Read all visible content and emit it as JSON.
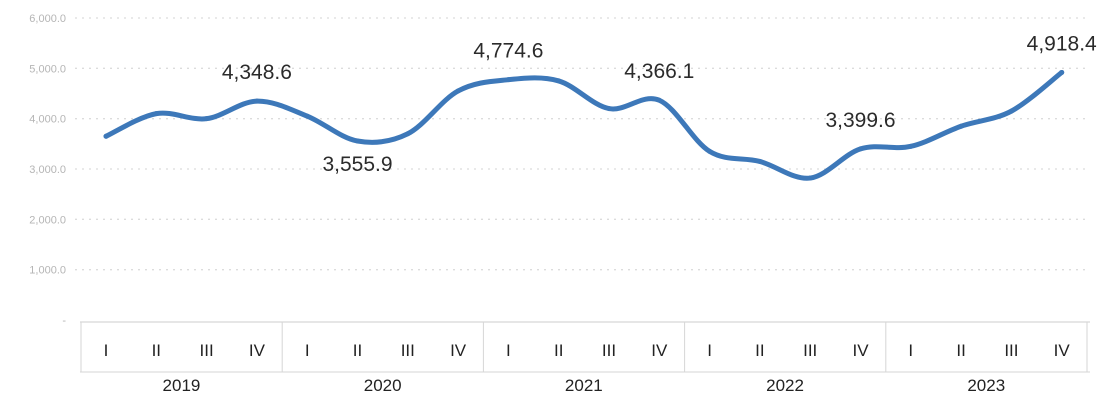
{
  "chart_data": {
    "type": "line",
    "title": "",
    "xlabel": "",
    "ylabel": "",
    "ylim": [
      0,
      6000
    ],
    "y_ticks": [
      "-",
      "1,000.0",
      "2,000.0",
      "3,000.0",
      "4,000.0",
      "5,000.0",
      "6,000.0"
    ],
    "grid": true,
    "legend": "none",
    "colors": {
      "line": "#3d78b9",
      "grid": "#dcdcdc",
      "axis": "#d6d6d6"
    },
    "years": [
      "2019",
      "2020",
      "2021",
      "2022",
      "2023"
    ],
    "categories": [
      "I",
      "II",
      "III",
      "IV",
      "I",
      "II",
      "III",
      "IV",
      "I",
      "II",
      "III",
      "IV",
      "I",
      "II",
      "III",
      "IV",
      "I",
      "II",
      "III",
      "IV"
    ],
    "series": [
      {
        "values": [
          3650,
          4100,
          4000,
          4348.6,
          4050,
          3555.9,
          3700,
          4550,
          4774.6,
          4750,
          4200,
          4366.1,
          3350,
          3150,
          2820,
          3399.6,
          3450,
          3850,
          4150,
          4918.4
        ]
      }
    ],
    "data_labels": [
      {
        "index": 3,
        "text": "4,348.6",
        "pos": "above"
      },
      {
        "index": 5,
        "text": "3,555.9",
        "pos": "below"
      },
      {
        "index": 8,
        "text": "4,774.6",
        "pos": "above"
      },
      {
        "index": 11,
        "text": "4,366.1",
        "pos": "above"
      },
      {
        "index": 15,
        "text": "3,399.6",
        "pos": "above"
      },
      {
        "index": 19,
        "text": "4,918.4",
        "pos": "above"
      }
    ]
  }
}
